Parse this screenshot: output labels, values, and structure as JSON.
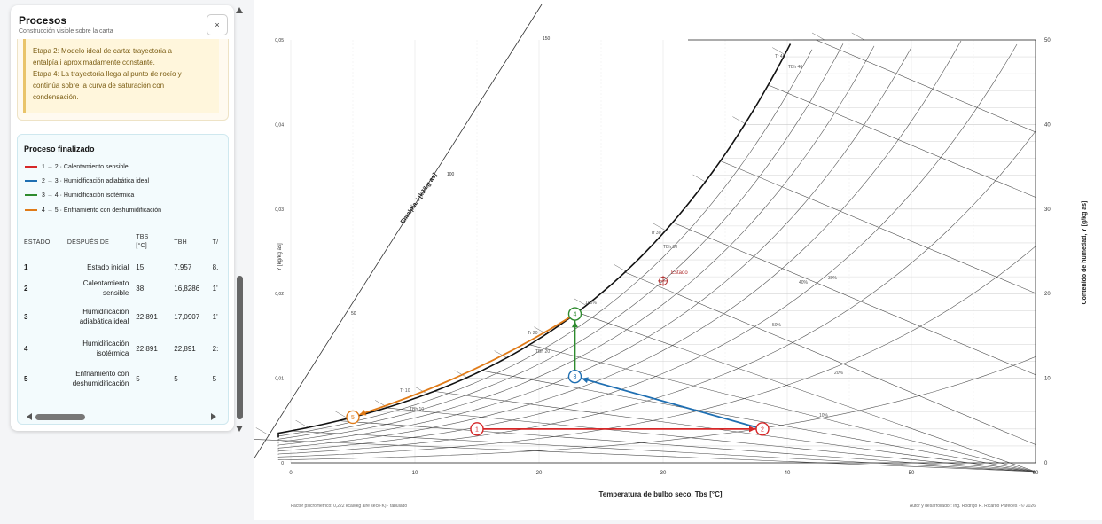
{
  "panel": {
    "title": "Procesos",
    "subtitle": "Construcción visible sobre la carta",
    "close_label": "×",
    "note_lines": [
      "Etapa 2: Modelo ideal de carta: trayectoria a",
      "entalpía i aproximadamente constante.",
      "Etapa 4: La trayectoria llega al punto de rocío y",
      "continúa sobre la curva de saturación con",
      "condensación."
    ]
  },
  "finished": {
    "title": "Proceso finalizado",
    "legend": [
      {
        "label": "1 → 2 · Calentamiento sensible",
        "color": "#d62728"
      },
      {
        "label": "2 → 3 · Humidificación adiabática ideal",
        "color": "#1f6fb2"
      },
      {
        "label": "3 → 4 · Humidificación isotérmica",
        "color": "#2e8b2e"
      },
      {
        "label": "4 → 5 · Enfriamiento con deshumidificación",
        "color": "#e07b18"
      }
    ],
    "headers": {
      "estado": "ESTADO",
      "despues": "DESPUÉS DE",
      "tbs": "TBS",
      "tbs_unit": "[°C]",
      "tbh": "TBH",
      "ta": "T/"
    },
    "rows": [
      {
        "estado": "1",
        "despues": [
          "Estado inicial"
        ],
        "tbs": "15",
        "tbh": "7,957",
        "ta": "8,"
      },
      {
        "estado": "2",
        "despues": [
          "Calentamiento",
          "sensible"
        ],
        "tbs": "38",
        "tbh": "16,8286",
        "ta": "1'"
      },
      {
        "estado": "3",
        "despues": [
          "Humidificación",
          "adiabática ideal"
        ],
        "tbs": "22,891",
        "tbh": "17,0907",
        "ta": "1'"
      },
      {
        "estado": "4",
        "despues": [
          "Humidificación",
          "isotérmica"
        ],
        "tbs": "22,891",
        "tbh": "22,891",
        "ta": "2:"
      },
      {
        "estado": "5",
        "despues": [
          "Enfriamiento con",
          "deshumidificación"
        ],
        "tbs": "5",
        "tbh": "5",
        "ta": "5"
      }
    ]
  },
  "chart": {
    "xlabel": "Temperatura de bulbo seco, Tbs [°C]",
    "ylabel_left": "Y [kg/kg as]",
    "ylabel_right": "Contenido de humedad, Y [g/kg as]",
    "enthalpy_label": "Entalpía, i [kJ/kg as]",
    "footer_left": "Factor psicrométrico: 0,222 kcal/(kg aire seco·K) · tabulado",
    "footer_right": "Autor y desarrollador: Ing. Rodrigo R. Ricardo Paredes · © 2026",
    "estado_label": "Estado",
    "colors": {
      "heat": "#d62728",
      "adiab": "#1f6fb2",
      "iso": "#2e8b2e",
      "cool": "#e07b18",
      "estado": "#b03030"
    }
  },
  "chart_data": {
    "type": "line",
    "xlim": [
      0,
      60
    ],
    "ylim_left": [
      0,
      0.05
    ],
    "ylim_right": [
      0,
      50
    ],
    "x_ticks": [
      "0",
      "10",
      "20",
      "30",
      "40",
      "50",
      "60"
    ],
    "y_left_ticks": [
      "0",
      "0,01",
      "0,02",
      "0,03",
      "0,04",
      "0,05"
    ],
    "y_right_ticks": [
      "0",
      "10",
      "20",
      "30",
      "40",
      "50"
    ],
    "enthalpy_ticks": [
      "50",
      "100",
      "150"
    ],
    "states": [
      {
        "label": "1",
        "tbs": 15,
        "y": 4.0
      },
      {
        "label": "2",
        "tbs": 38,
        "y": 4.0
      },
      {
        "label": "3",
        "tbs": 22.891,
        "y": 10.2
      },
      {
        "label": "4",
        "tbs": 22.891,
        "y": 17.6
      },
      {
        "label": "5",
        "tbs": 5,
        "y": 5.4
      }
    ],
    "estado_point": {
      "tbs": 30,
      "y": 21.5
    },
    "curve_labels": [
      "Tr 10",
      "TBh 10",
      "Tr 20",
      "TBh 20",
      "Tr 30",
      "TBh 30",
      "Tr 40",
      "TBh 40",
      "100%",
      "50%",
      "40%",
      "30%",
      "20%",
      "10%"
    ]
  }
}
